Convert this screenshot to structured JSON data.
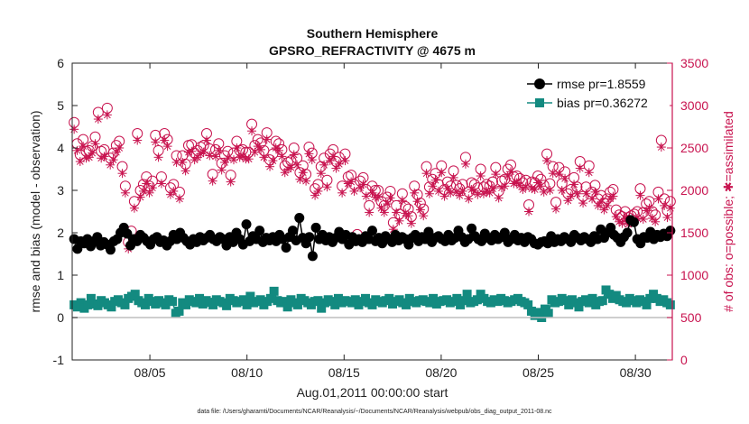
{
  "chart_data": {
    "type": "line",
    "title_lines": [
      "Southern Hemisphere",
      "GPSRO_REFRACTIVITY @ 4675 m"
    ],
    "xlabel": "Aug.01,2011 00:00:00 start",
    "ylabel_left": "rmse and bias (model - observation)",
    "ylabel_right": "# of obs: o=possible; ✱=assimilated",
    "footer": "data file: /Users/gharamti/Documents/NCAR/Reanalysis/~/Documents/NCAR/Reanalysis/webpub/obs_diag_output_2011-08.nc",
    "xlim": [
      1.0,
      31.9
    ],
    "x_ticks": [
      {
        "x": 5,
        "label": "08/05"
      },
      {
        "x": 10,
        "label": "08/10"
      },
      {
        "x": 15,
        "label": "08/15"
      },
      {
        "x": 20,
        "label": "08/20"
      },
      {
        "x": 25,
        "label": "08/25"
      },
      {
        "x": 30,
        "label": "08/30"
      }
    ],
    "ylim_left": [
      -1,
      6
    ],
    "y_ticks_left": [
      "-1",
      "0",
      "1",
      "2",
      "3",
      "4",
      "5",
      "6"
    ],
    "ylim_right": [
      0,
      3500
    ],
    "y_ticks_right": [
      "0",
      "500",
      "1000",
      "1500",
      "2000",
      "2500",
      "3000",
      "3500"
    ],
    "legend_position": "top-right",
    "colors": {
      "rmse": "#000000",
      "bias": "#138a80",
      "obs": "#c8134f",
      "zero": "#bdbdbd"
    },
    "series": [
      {
        "name": "rmse pr=1.8559",
        "key": "rmse",
        "values": [
          1.85,
          1.62,
          1.8,
          1.75,
          1.85,
          1.68,
          1.8,
          1.9,
          1.7,
          1.78,
          1.72,
          1.6,
          1.8,
          1.85,
          2.0,
          2.12,
          1.98,
          1.7,
          1.85,
          1.8,
          1.95,
          1.88,
          1.8,
          1.72,
          1.85,
          1.9,
          1.78,
          1.82,
          1.7,
          1.8,
          1.95,
          1.85,
          2.0,
          1.88,
          1.8,
          1.72,
          1.85,
          1.78,
          1.9,
          1.82,
          1.88,
          1.95,
          1.85,
          1.8,
          1.9,
          1.85,
          1.7,
          1.9,
          1.78,
          2.0,
          1.85,
          1.72,
          2.2,
          1.8,
          1.92,
          1.85,
          2.05,
          1.78,
          1.88,
          1.82,
          1.9,
          1.8,
          1.95,
          1.85,
          1.65,
          1.9,
          2.05,
          1.82,
          2.35,
          1.88,
          1.75,
          1.9,
          1.45,
          2.12,
          1.85,
          1.95,
          1.82,
          1.9,
          1.78,
          1.88,
          2.02,
          1.85,
          1.95,
          1.72,
          1.9,
          1.8,
          1.85,
          1.78,
          1.92,
          1.85,
          2.05,
          1.8,
          1.88,
          1.75,
          1.92,
          1.85,
          1.78,
          1.95,
          1.82,
          1.9,
          1.85,
          1.72,
          1.88,
          1.95,
          1.8,
          1.9,
          1.85,
          2.02,
          1.78,
          1.88,
          1.92,
          1.85,
          1.8,
          1.95,
          1.82,
          1.88,
          2.05,
          1.9,
          1.78,
          1.85,
          2.1,
          1.92,
          1.85,
          1.8,
          1.98,
          1.88,
          1.82,
          1.95,
          1.85,
          1.9,
          2.0,
          1.78,
          1.85,
          1.95,
          1.82,
          1.88,
          1.78,
          1.9,
          1.85,
          1.75,
          1.72,
          1.78,
          1.8,
          1.75,
          1.92,
          1.78,
          1.85,
          1.8,
          1.9,
          1.85,
          1.78,
          1.95,
          1.88,
          1.82,
          1.9,
          1.85,
          1.78,
          1.92,
          1.85,
          2.08,
          1.88,
          2.0,
          2.12,
          1.95,
          1.88,
          1.78,
          1.9,
          2.0,
          2.3,
          2.25,
          1.85,
          1.75,
          1.9,
          1.88,
          2.02,
          1.85,
          1.95,
          1.9,
          1.98,
          1.92,
          2.05
        ]
      },
      {
        "name": "bias pr=0.36272",
        "key": "bias",
        "values": [
          0.3,
          0.25,
          0.35,
          0.22,
          0.3,
          0.45,
          0.32,
          0.28,
          0.4,
          0.35,
          0.3,
          0.25,
          0.38,
          0.42,
          0.35,
          0.3,
          0.45,
          0.5,
          0.55,
          0.4,
          0.35,
          0.3,
          0.45,
          0.38,
          0.32,
          0.4,
          0.35,
          0.3,
          0.42,
          0.38,
          0.1,
          0.15,
          0.35,
          0.3,
          0.42,
          0.38,
          0.35,
          0.45,
          0.32,
          0.4,
          0.36,
          0.3,
          0.42,
          0.38,
          0.35,
          0.28,
          0.45,
          0.4,
          0.35,
          0.38,
          0.42,
          0.3,
          0.5,
          0.35,
          0.38,
          0.42,
          0.3,
          0.38,
          0.45,
          0.62,
          0.4,
          0.35,
          0.38,
          0.25,
          0.42,
          0.35,
          0.3,
          0.45,
          0.4,
          0.35,
          0.3,
          0.38,
          0.4,
          0.22,
          0.35,
          0.42,
          0.38,
          0.3,
          0.45,
          0.35,
          0.4,
          0.38,
          0.35,
          0.42,
          0.3,
          0.38,
          0.45,
          0.35,
          0.3,
          0.42,
          0.38,
          0.35,
          0.4,
          0.45,
          0.32,
          0.38,
          0.42,
          0.35,
          0.3,
          0.45,
          0.38,
          0.35,
          0.4,
          0.42,
          0.38,
          0.35,
          0.45,
          0.32,
          0.38,
          0.4,
          0.42,
          0.35,
          0.38,
          0.45,
          0.3,
          0.4,
          0.55,
          0.35,
          0.38,
          0.42,
          0.55,
          0.45,
          0.38,
          0.35,
          0.42,
          0.38,
          0.45,
          0.4,
          0.35,
          0.38,
          0.42,
          0.45,
          0.38,
          0.35,
          0.3,
          0.15,
          0.05,
          0.12,
          0.0,
          0.2,
          0.1,
          0.42,
          0.35,
          0.38,
          0.45,
          0.4,
          0.3,
          0.42,
          0.35,
          0.25,
          0.38,
          0.42,
          0.35,
          0.45,
          0.3,
          0.38,
          0.4,
          0.65,
          0.55,
          0.45,
          0.52,
          0.42,
          0.38,
          0.35,
          0.45,
          0.4,
          0.35,
          0.42,
          0.38,
          0.3,
          0.45,
          0.55,
          0.45,
          0.38,
          0.42,
          0.35,
          0.3
        ]
      },
      {
        "name": "possible",
        "key": "possible",
        "values": [
          2800,
          2550,
          2420,
          2600,
          2460,
          2470,
          2520,
          2630,
          2920,
          2460,
          2480,
          2970,
          2380,
          2440,
          2530,
          2580,
          2280,
          2050,
          1390,
          1520,
          1870,
          2670,
          2000,
          2070,
          2160,
          2050,
          2110,
          2650,
          2470,
          2160,
          2670,
          2600,
          2030,
          2070,
          2410,
          1980,
          2410,
          2310,
          2530,
          2540,
          2440,
          2470,
          2510,
          2530,
          2670,
          2490,
          2190,
          2480,
          2550,
          2320,
          2410,
          2460,
          2180,
          2440,
          2580,
          2470,
          2480,
          2450,
          2450,
          2780,
          2530,
          2600,
          2560,
          2470,
          2680,
          2360,
          2430,
          2580,
          2550,
          2480,
          2290,
          2330,
          2350,
          2500,
          2380,
          2210,
          2290,
          2190,
          2510,
          2440,
          2020,
          2070,
          2280,
          2380,
          2120,
          2430,
          2480,
          2340,
          2390,
          2050,
          2430,
          2160,
          2180,
          2070,
          1480,
          2110,
          2150,
          2010,
          1820,
          2050,
          2000,
          2000,
          1870,
          1820,
          1920,
          1990,
          1620,
          1820,
          1720,
          1960,
          1810,
          1780,
          1690,
          2050,
          1950,
          1850,
          1780,
          2280,
          2040,
          2130,
          2200,
          2070,
          2290,
          2010,
          2100,
          2050,
          2230,
          2060,
          2020,
          2070,
          2390,
          1980,
          2090,
          2070,
          2030,
          2250,
          2040,
          2070,
          2050,
          2100,
          2270,
          1990,
          2110,
          2130,
          2250,
          2300,
          2160,
          2170,
          2140,
          2090,
          2120,
          1830,
          2100,
          2090,
          2170,
          2130,
          2060,
          2430,
          2080,
          2280,
          1860,
          2270,
          2080,
          2220,
          1960,
          2010,
          2150,
          2040,
          2340,
          1930,
          2040,
          2290,
          1980,
          2060,
          1900,
          1940,
          1850,
          1900,
          1980,
          2010,
          1770,
          1710,
          1690,
          1750,
          1680,
          1700,
          1720,
          1750,
          2020,
          1740,
          1840,
          1870,
          1750,
          1710,
          1980,
          2590,
          1900,
          1760,
          1870
        ]
      },
      {
        "name": "assimilated",
        "key": "assimilated",
        "values": [
          2720,
          2470,
          2340,
          2520,
          2380,
          2390,
          2440,
          2550,
          2840,
          2380,
          2400,
          2890,
          2300,
          2360,
          2450,
          2500,
          2200,
          1970,
          1310,
          1440,
          1790,
          2590,
          1920,
          1990,
          2080,
          1970,
          2030,
          2570,
          2390,
          2080,
          2590,
          2520,
          1950,
          1990,
          2330,
          1900,
          2330,
          2230,
          2450,
          2460,
          2360,
          2390,
          2430,
          2450,
          2590,
          2410,
          2110,
          2400,
          2470,
          2240,
          2330,
          2380,
          2100,
          2360,
          2500,
          2390,
          2400,
          2370,
          2370,
          2700,
          2450,
          2520,
          2480,
          2390,
          2600,
          2280,
          2350,
          2500,
          2470,
          2400,
          2210,
          2250,
          2270,
          2420,
          2300,
          2130,
          2210,
          2110,
          2430,
          2360,
          1940,
          1990,
          2200,
          2300,
          2040,
          2350,
          2400,
          2260,
          2310,
          1970,
          2350,
          2080,
          2100,
          1990,
          1400,
          2030,
          2070,
          1930,
          1740,
          1970,
          1920,
          1920,
          1790,
          1740,
          1840,
          1910,
          1540,
          1740,
          1640,
          1880,
          1730,
          1700,
          1610,
          1970,
          1870,
          1770,
          1700,
          2200,
          1960,
          2050,
          2120,
          1990,
          2210,
          1930,
          2020,
          1970,
          2150,
          1980,
          1940,
          1990,
          2310,
          1900,
          2010,
          1990,
          1950,
          2170,
          1960,
          1990,
          1970,
          2020,
          2190,
          1910,
          2030,
          2050,
          2170,
          2220,
          2080,
          2090,
          2060,
          2010,
          2040,
          1750,
          2020,
          2010,
          2090,
          2050,
          1980,
          2350,
          2000,
          2200,
          1780,
          2190,
          2000,
          2140,
          1880,
          1930,
          2070,
          1960,
          2260,
          1850,
          1960,
          2210,
          1900,
          1980,
          1820,
          1860,
          1770,
          1820,
          1900,
          1930,
          1690,
          1630,
          1610,
          1670,
          1600,
          1620,
          1640,
          1670,
          1940,
          1660,
          1760,
          1790,
          1670,
          1630,
          1900,
          2510,
          1820,
          1680,
          1790
        ]
      }
    ]
  }
}
